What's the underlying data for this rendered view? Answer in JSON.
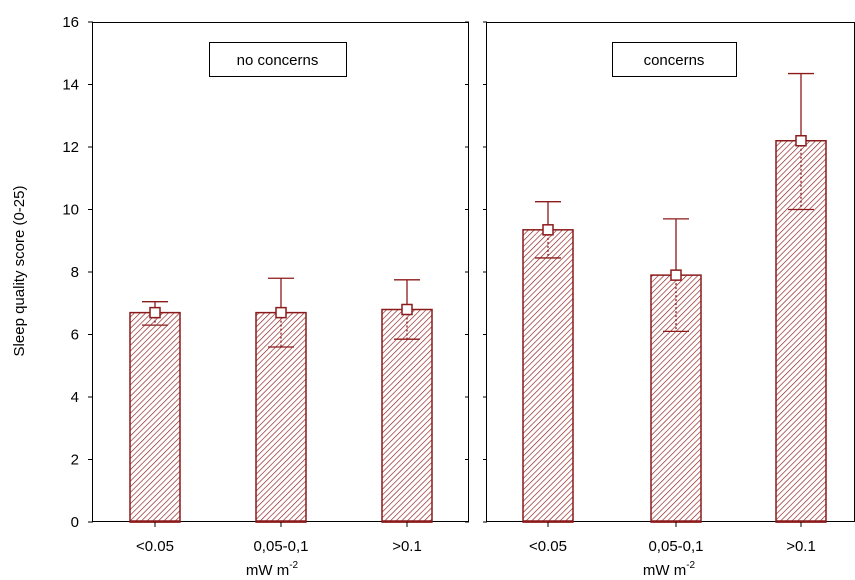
{
  "chart_data": {
    "type": "bar",
    "ylabel": "Sleep quality score (0-25)",
    "xlabel_main": "mW m",
    "xlabel_sup": "-2",
    "ylim": [
      0,
      16
    ],
    "yticks": [
      0,
      2,
      4,
      6,
      8,
      10,
      12,
      14,
      16
    ],
    "categories": [
      "<0.05",
      "0,05-0,1",
      ">0.1"
    ],
    "colors": {
      "bar": "#8b1a1a",
      "hatch": "#8b1a1a"
    },
    "panels": [
      {
        "title": "no concerns",
        "values": [
          6.7,
          6.7,
          6.8
        ],
        "error_low": [
          6.3,
          5.6,
          5.85
        ],
        "error_high": [
          7.05,
          7.8,
          7.75
        ]
      },
      {
        "title": "concerns",
        "values": [
          9.35,
          7.9,
          12.2
        ],
        "error_low": [
          8.45,
          6.1,
          10.0
        ],
        "error_high": [
          10.25,
          9.7,
          14.35
        ]
      }
    ]
  }
}
